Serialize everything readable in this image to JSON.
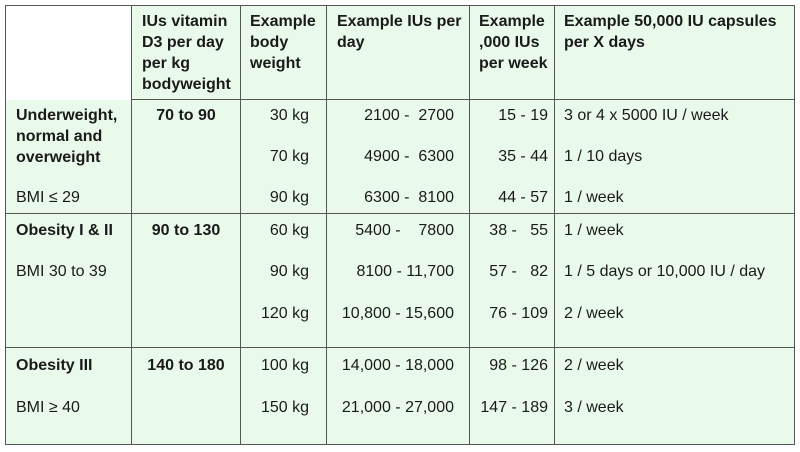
{
  "header": {
    "col1": [
      "IUs vitamin",
      "D3 per day",
      "per kg",
      "bodyweight"
    ],
    "col2": [
      "Example",
      "body",
      "weight"
    ],
    "col3": [
      "Example IUs per",
      "day"
    ],
    "col4": [
      "Example",
      ",000 IUs",
      "per week"
    ],
    "col5": [
      "Example 50,000 IU capsules",
      "per X days"
    ]
  },
  "groups": [
    {
      "label": [
        "Underweight,",
        "normal and",
        "overweight"
      ],
      "bmi": "BMI ≤ 29",
      "per_kg": "70 to 90",
      "rows": [
        {
          "weight": "30 kg",
          "iu_day": "2100 -  2700",
          "per_week": "15 - 19",
          "capsules": "3 or 4 x 5000 IU / week"
        },
        {
          "weight": "70 kg",
          "iu_day": "4900 -  6300",
          "per_week": "35 - 44",
          "capsules": "1 / 10 days"
        },
        {
          "weight": "90 kg",
          "iu_day": "6300 -  8100",
          "per_week": "44 - 57",
          "capsules": "1 / week"
        }
      ]
    },
    {
      "label": [
        "Obesity I & II"
      ],
      "bmi": "BMI 30 to 39",
      "per_kg": "90 to 130",
      "rows": [
        {
          "weight": "60 kg",
          "iu_day": "5400 -    7800",
          "per_week": "38 -   55",
          "capsules": "1 / week"
        },
        {
          "weight": "90 kg",
          "iu_day": "8100 - 11,700",
          "per_week": "57 -   82",
          "capsules": "1 / 5 days or 10,000 IU / day"
        },
        {
          "weight": "120 kg",
          "iu_day": "10,800 - 15,600",
          "per_week": "76 - 109",
          "capsules": "2 / week"
        }
      ]
    },
    {
      "label": [
        "Obesity III"
      ],
      "bmi": "BMI ≥ 40",
      "per_kg": "140 to 180",
      "rows": [
        {
          "weight": "100 kg",
          "iu_day": "14,000 - 18,000",
          "per_week": "98 - 126",
          "capsules": "2 / week"
        },
        {
          "weight": "150 kg",
          "iu_day": "21,000 - 27,000",
          "per_week": "147 - 189",
          "capsules": "3 / week"
        }
      ]
    }
  ]
}
